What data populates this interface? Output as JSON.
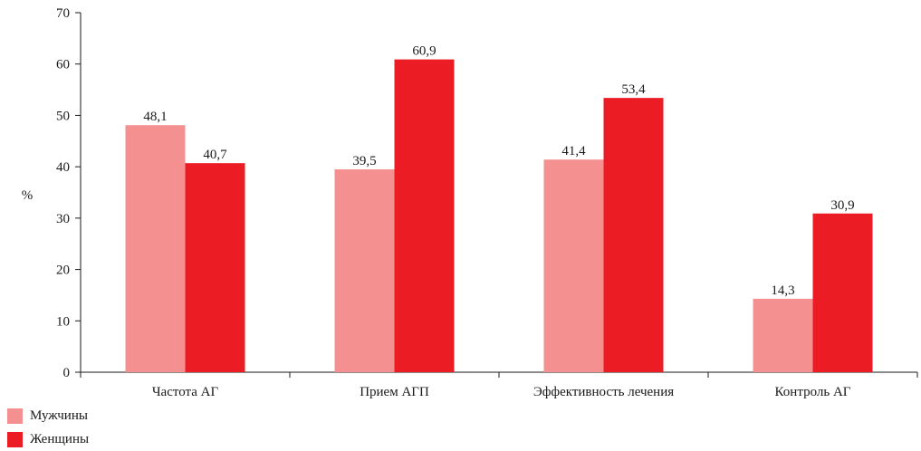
{
  "chart_data": {
    "type": "bar",
    "title": "",
    "xlabel": "",
    "ylabel": "%",
    "ylim": [
      0,
      70
    ],
    "yticks": [
      0,
      10,
      20,
      30,
      40,
      50,
      60,
      70
    ],
    "categories": [
      "Частота АГ",
      "Прием АГП",
      "Эффективность лечения",
      "Контроль АГ"
    ],
    "series": [
      {
        "name": "Мужчины",
        "color": "#f49090",
        "values": [
          48.1,
          39.5,
          41.4,
          14.3
        ],
        "labels": [
          "48,1",
          "39,5",
          "41,4",
          "14,3"
        ]
      },
      {
        "name": "Женщины",
        "color": "#ec1c24",
        "values": [
          40.7,
          60.9,
          53.4,
          30.9
        ],
        "labels": [
          "40,7",
          "60,9",
          "53,4",
          "30,9"
        ]
      }
    ],
    "grid": false,
    "legend": "bottom-left"
  }
}
